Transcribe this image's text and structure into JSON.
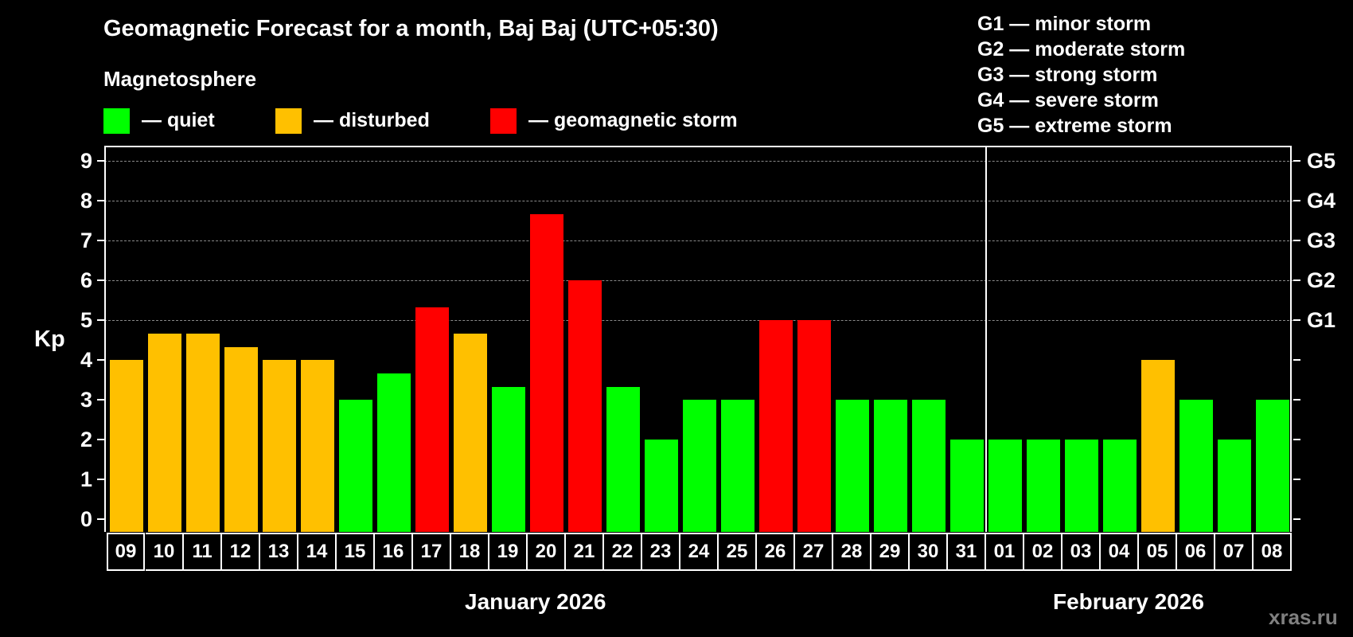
{
  "header": {
    "title": "Geomagnetic Forecast for a month, Baj Baj (UTC+05:30)",
    "subtitle": "Magnetosphere"
  },
  "legend": [
    {
      "label": "— quiet",
      "color": "#00ff00"
    },
    {
      "label": "— disturbed",
      "color": "#ffc000"
    },
    {
      "label": "— geomagnetic storm",
      "color": "#ff0000"
    }
  ],
  "storm_levels": [
    "G1 — minor storm",
    "G2 — moderate storm",
    "G3 — strong storm",
    "G4 — severe storm",
    "G5 — extreme storm"
  ],
  "axis": {
    "ylabel": "Kp",
    "yticks": [
      "0",
      "1",
      "2",
      "3",
      "4",
      "5",
      "6",
      "7",
      "8",
      "9"
    ],
    "right_ticks": [
      {
        "kp": 5,
        "label": "G1"
      },
      {
        "kp": 6,
        "label": "G2"
      },
      {
        "kp": 7,
        "label": "G3"
      },
      {
        "kp": 8,
        "label": "G4"
      },
      {
        "kp": 9,
        "label": "G5"
      }
    ]
  },
  "months": [
    {
      "label": "January 2026"
    },
    {
      "label": "February 2026"
    }
  ],
  "watermark": "xras.ru",
  "chart_data": {
    "type": "bar",
    "title": "Geomagnetic Forecast for a month, Baj Baj (UTC+05:30)",
    "xlabel": "January 2026 / February 2026",
    "ylabel": "Kp",
    "ylim": [
      0,
      9
    ],
    "grid": true,
    "legend_position": "top",
    "categories": [
      "09",
      "10",
      "11",
      "12",
      "13",
      "14",
      "15",
      "16",
      "17",
      "18",
      "19",
      "20",
      "21",
      "22",
      "23",
      "24",
      "25",
      "26",
      "27",
      "28",
      "29",
      "30",
      "31",
      "01",
      "02",
      "03",
      "04",
      "05",
      "06",
      "07",
      "08"
    ],
    "values": [
      4.0,
      4.67,
      4.67,
      4.33,
      4.0,
      4.0,
      3.0,
      3.67,
      5.33,
      4.67,
      3.33,
      7.67,
      6.0,
      3.33,
      2.0,
      3.0,
      3.0,
      5.0,
      5.0,
      3.0,
      3.0,
      3.0,
      2.0,
      2.0,
      2.0,
      2.0,
      2.0,
      4.0,
      3.0,
      2.0,
      3.0
    ],
    "status": [
      "disturbed",
      "disturbed",
      "disturbed",
      "disturbed",
      "disturbed",
      "disturbed",
      "quiet",
      "quiet",
      "storm",
      "disturbed",
      "quiet",
      "storm",
      "storm",
      "quiet",
      "quiet",
      "quiet",
      "quiet",
      "storm",
      "storm",
      "quiet",
      "quiet",
      "quiet",
      "quiet",
      "quiet",
      "quiet",
      "quiet",
      "quiet",
      "disturbed",
      "quiet",
      "quiet",
      "quiet"
    ],
    "status_colors": {
      "quiet": "#00ff00",
      "disturbed": "#ffc000",
      "storm": "#ff0000"
    },
    "month_split_index": 23
  }
}
